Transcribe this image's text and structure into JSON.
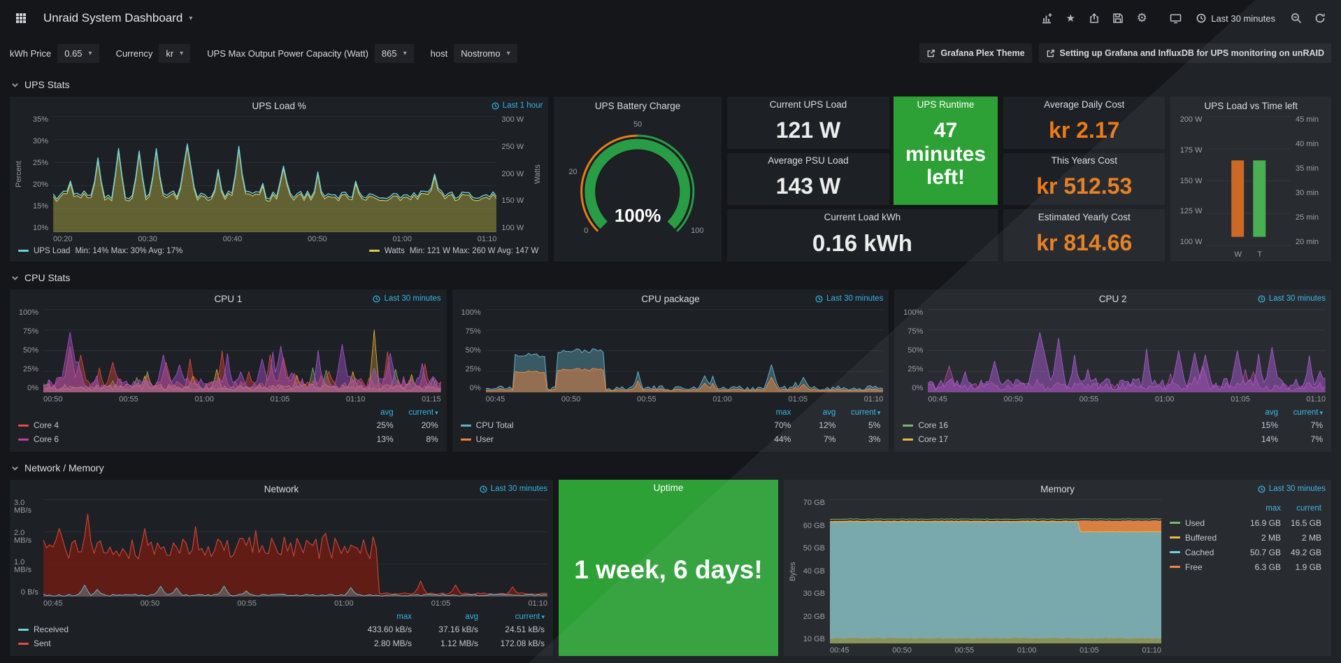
{
  "nav": {
    "title": "Unraid System Dashboard",
    "time_range": "Last 30 minutes"
  },
  "icons": {
    "caret_down": "▾",
    "star": "★",
    "gear": "⚙"
  },
  "filters": {
    "kwh": {
      "label": "kWh Price",
      "value": "0.65"
    },
    "currency": {
      "label": "Currency",
      "value": "kr"
    },
    "ups_max": {
      "label": "UPS Max Output Power Capacity (Watt)",
      "value": "865"
    },
    "host": {
      "label": "host",
      "value": "Nostromo"
    }
  },
  "links": {
    "plex": "Grafana Plex Theme",
    "guide": "Setting up Grafana and InfluxDB for UPS monitoring on unRAID"
  },
  "sections": {
    "ups": "UPS Stats",
    "cpu": "CPU Stats",
    "netmem": "Network / Memory"
  },
  "colors": {
    "blue_accent": "#33b5e5",
    "orange_value": "#eb7b18",
    "green_panel": "#2da135",
    "teal": "#6ed0e0",
    "olive": "#b8b14a",
    "olive_line": "#d8cf5a",
    "red": "#e24d42",
    "purple": "#a352cc",
    "magenta": "#ba43a9",
    "light_blue": "#64b0c8",
    "orange_series": "#ef843c",
    "green_series": "#7eb26d",
    "yellow": "#eab839",
    "bar_orange": "#cd6117",
    "bar_green": "#3fae49",
    "gauge_green": "#299c46",
    "gauge_orange": "#eb7b18"
  },
  "panels": {
    "ups_load": {
      "title": "UPS Load %",
      "time": "Last 1 hour",
      "y_left_label": "Percent",
      "y_right_label": "Watts",
      "y_left": [
        "35%",
        "30%",
        "25%",
        "20%",
        "15%",
        "10%"
      ],
      "y_right": [
        "300 W",
        "250 W",
        "200 W",
        "150 W",
        "100 W"
      ],
      "x": [
        "00:20",
        "00:30",
        "00:40",
        "00:50",
        "01:00",
        "01:10"
      ],
      "legend": [
        {
          "name": "UPS Load",
          "stats": "Min: 14% Max: 30% Avg: 17%",
          "color": "#6ed0e0"
        },
        {
          "name": "Watts",
          "stats": "Min: 121 W Max: 260 W Avg: 147 W",
          "color": "#d6cc52"
        }
      ]
    },
    "battery": {
      "title": "UPS Battery Charge",
      "value": "100%",
      "ticks": [
        "0",
        "20",
        "50",
        "100"
      ]
    },
    "current_load": {
      "title": "Current UPS Load",
      "value": "121 W"
    },
    "avg_psu": {
      "title": "Average PSU Load",
      "value": "143 W"
    },
    "load_kwh": {
      "title": "Current Load kWh",
      "value": "0.16 kWh"
    },
    "runtime": {
      "title": "UPS Runtime",
      "value": "47 minutes left!"
    },
    "daily_cost": {
      "title": "Average Daily Cost",
      "value": "kr 2.17"
    },
    "years_cost": {
      "title": "This Years Cost",
      "value": "kr 512.53"
    },
    "yearly_cost": {
      "title": "Estimated Yearly Cost",
      "value": "kr 814.66"
    },
    "ups_bar": {
      "title": "UPS Load vs Time left",
      "y_left": [
        "200 W",
        "175 W",
        "150 W",
        "125 W",
        "100 W"
      ],
      "y_right": [
        "45 min",
        "40 min",
        "35 min",
        "30 min",
        "25 min",
        "20 min"
      ],
      "bars": [
        {
          "label": "W"
        },
        {
          "label": "T"
        }
      ]
    },
    "cpu1": {
      "title": "CPU 1",
      "time": "Last 30 minutes",
      "y": [
        "100%",
        "75%",
        "50%",
        "25%",
        "0%"
      ],
      "x": [
        "00:50",
        "00:55",
        "01:00",
        "01:05",
        "01:10",
        "01:15"
      ],
      "cols": [
        "avg",
        "current"
      ],
      "legend": [
        {
          "name": "Core 4",
          "v1": "25%",
          "v2": "20%",
          "color": "#e24d42"
        },
        {
          "name": "Core 6",
          "v1": "13%",
          "v2": "8%",
          "color": "#ba43a9"
        }
      ]
    },
    "cpu_pkg": {
      "title": "CPU package",
      "time": "Last 30 minutes",
      "y": [
        "100%",
        "75%",
        "50%",
        "25%",
        "0%"
      ],
      "x": [
        "00:45",
        "00:50",
        "00:55",
        "01:00",
        "01:05",
        "01:10"
      ],
      "cols": [
        "max",
        "avg",
        "current"
      ],
      "legend": [
        {
          "name": "CPU Total",
          "v1": "70%",
          "v2": "12%",
          "v3": "5%",
          "color": "#64b0c8"
        },
        {
          "name": "User",
          "v1": "44%",
          "v2": "7%",
          "v3": "3%",
          "color": "#ef843c"
        }
      ]
    },
    "cpu2": {
      "title": "CPU 2",
      "time": "Last 30 minutes",
      "y": [
        "100%",
        "75%",
        "50%",
        "25%",
        "0%"
      ],
      "x": [
        "00:45",
        "00:50",
        "00:55",
        "01:00",
        "01:05",
        "01:10"
      ],
      "cols": [
        "avg",
        "current"
      ],
      "legend": [
        {
          "name": "Core 16",
          "v1": "15%",
          "v2": "7%",
          "color": "#7eb26d"
        },
        {
          "name": "Core 17",
          "v1": "14%",
          "v2": "7%",
          "color": "#eab839"
        }
      ]
    },
    "network": {
      "title": "Network",
      "time": "Last 30 minutes",
      "y": [
        "3.0 MB/s",
        "2.0 MB/s",
        "1.0 MB/s",
        "0 B/s"
      ],
      "x": [
        "00:45",
        "00:50",
        "00:55",
        "01:00",
        "01:05",
        "01:10"
      ],
      "cols": [
        "max",
        "avg",
        "current"
      ],
      "legend": [
        {
          "name": "Received",
          "v1": "433.60 kB/s",
          "v2": "37.16 kB/s",
          "v3": "24.51 kB/s",
          "color": "#6ed0e0"
        },
        {
          "name": "Sent",
          "v1": "2.80 MB/s",
          "v2": "1.12 MB/s",
          "v3": "172.08 kB/s",
          "color": "#e24d42"
        }
      ]
    },
    "uptime": {
      "title": "Uptime",
      "value": "1 week, 6 days!"
    },
    "memory": {
      "title": "Memory",
      "time": "Last 30 minutes",
      "y_label": "Bytes",
      "y": [
        "70 GB",
        "60 GB",
        "50 GB",
        "40 GB",
        "30 GB",
        "20 GB",
        "10 GB"
      ],
      "x": [
        "00:45",
        "00:50",
        "00:55",
        "01:00",
        "01:05",
        "01:10"
      ],
      "cols": [
        "max",
        "current"
      ],
      "legend": [
        {
          "name": "Used",
          "v1": "16.9 GB",
          "v2": "16.5 GB",
          "color": "#7eb26d"
        },
        {
          "name": "Buffered",
          "v1": "2 MB",
          "v2": "2 MB",
          "color": "#eab839"
        },
        {
          "name": "Cached",
          "v1": "50.7 GB",
          "v2": "49.2 GB",
          "color": "#6ed0e0"
        },
        {
          "name": "Free",
          "v1": "6.3 GB",
          "v2": "1.9 GB",
          "color": "#ef843c"
        }
      ]
    }
  }
}
